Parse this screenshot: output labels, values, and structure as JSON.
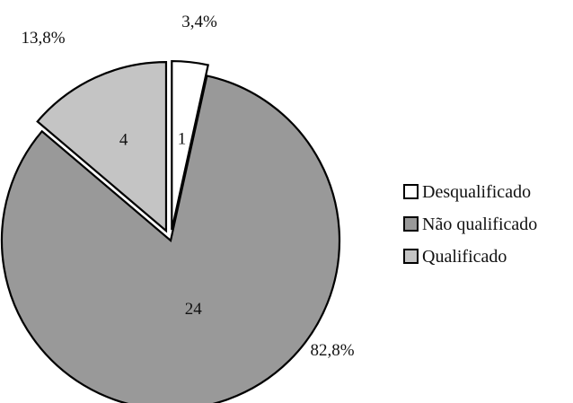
{
  "chart_data": {
    "type": "pie",
    "categories": [
      "Desqualificado",
      "Não qualificado",
      "Qualificado"
    ],
    "values": [
      1,
      24,
      4
    ],
    "percent_labels": [
      "3,4%",
      "82,8%",
      "13,8%"
    ],
    "colors": [
      "#ffffff",
      "#999999",
      "#c4c4c4"
    ],
    "exploded": true,
    "legend_position": "right"
  }
}
